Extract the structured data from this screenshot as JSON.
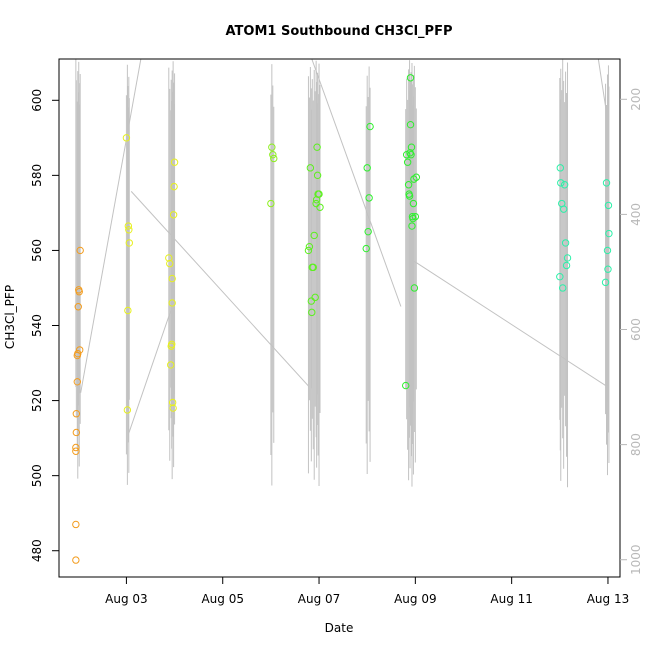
{
  "chart_data": {
    "type": "scatter",
    "title": "ATOM1 Southbound CH3Cl_PFP",
    "xlabel": "Date",
    "ylabel": "CH3Cl_PFP",
    "xlim": [
      1.6,
      13.25
    ],
    "ylim": [
      473,
      611
    ],
    "x_ticks": [
      3,
      5,
      7,
      9,
      11,
      13
    ],
    "x_tick_labels": [
      "Aug 03",
      "Aug 05",
      "Aug 07",
      "Aug 09",
      "Aug 11",
      "Aug 13"
    ],
    "y_ticks": [
      480,
      500,
      520,
      540,
      560,
      580,
      600
    ],
    "y2_lim": [
      1030,
      130
    ],
    "y2_ticks": [
      200,
      400,
      600,
      800,
      1000
    ],
    "y2_note": "right axis is altitude-like, reversed; grey trace is the flight altitude profile",
    "grid": false,
    "legend": "none",
    "series": [
      {
        "color": "#f39c1e",
        "x": [
          1.95,
          1.95,
          1.95,
          1.95,
          1.96,
          1.96,
          1.98,
          1.98,
          1.99,
          2.0,
          2.01,
          2.02,
          2.03,
          2.04
        ],
        "y": [
          477.5,
          487,
          506.5,
          507.5,
          511.5,
          516.5,
          525,
          532,
          532.5,
          545,
          549.5,
          549,
          533.5,
          560
        ]
      },
      {
        "color": "#e7f01e",
        "x": [
          3.0,
          3.02,
          3.03,
          3.04,
          3.05,
          3.06,
          3.88,
          3.9,
          3.92,
          3.93,
          3.94,
          3.95,
          3.95,
          3.96,
          3.97,
          3.98,
          3.99,
          4.0
        ],
        "y": [
          590,
          517.5,
          544,
          566.5,
          565.5,
          562,
          558,
          556.5,
          529.5,
          534.5,
          535,
          546,
          552.5,
          519.5,
          518,
          569.5,
          577,
          583.5
        ]
      },
      {
        "color": "#8ef01e",
        "x": [
          6.0,
          6.02,
          6.04,
          6.06
        ],
        "y": [
          572.5,
          587.5,
          585.5,
          584.5
        ]
      },
      {
        "color": "#5cf01e",
        "x": [
          6.78,
          6.8,
          6.82,
          6.84,
          6.85,
          6.86,
          6.88,
          6.9,
          6.92,
          6.94,
          6.95,
          6.96,
          6.97,
          6.98,
          7.0,
          7.02
        ],
        "y": [
          560,
          561,
          582,
          546.5,
          543.5,
          555.5,
          555.5,
          564,
          547.5,
          572.5,
          573.5,
          587.5,
          580,
          575,
          575,
          571.5
        ]
      },
      {
        "color": "#2cf02c",
        "x": [
          7.98,
          8.0,
          8.02,
          8.04,
          8.06,
          8.8,
          8.82,
          8.84,
          8.86,
          8.87,
          8.88,
          8.89,
          8.9,
          8.9,
          8.91,
          8.92,
          8.93,
          8.94,
          8.95,
          8.96,
          8.97,
          8.98,
          9.0,
          9.02
        ],
        "y": [
          560.5,
          582,
          565,
          574,
          593,
          524,
          585.5,
          583.5,
          577.5,
          575,
          574.5,
          586,
          606,
          593.5,
          585.5,
          587.5,
          566.5,
          569,
          568.5,
          572.5,
          579,
          550,
          569,
          579.5
        ]
      },
      {
        "color": "#2cf0a8",
        "x": [
          12.0,
          12.01,
          12.02,
          12.04,
          12.06,
          12.08,
          12.1,
          12.12,
          12.14,
          12.16,
          12.95,
          12.97,
          12.99,
          13.0,
          13.01,
          13.02
        ],
        "y": [
          553,
          582,
          578,
          572.5,
          550,
          571,
          577.5,
          562,
          556,
          558,
          551.5,
          578,
          560,
          555,
          572,
          564.5
        ]
      }
    ]
  }
}
